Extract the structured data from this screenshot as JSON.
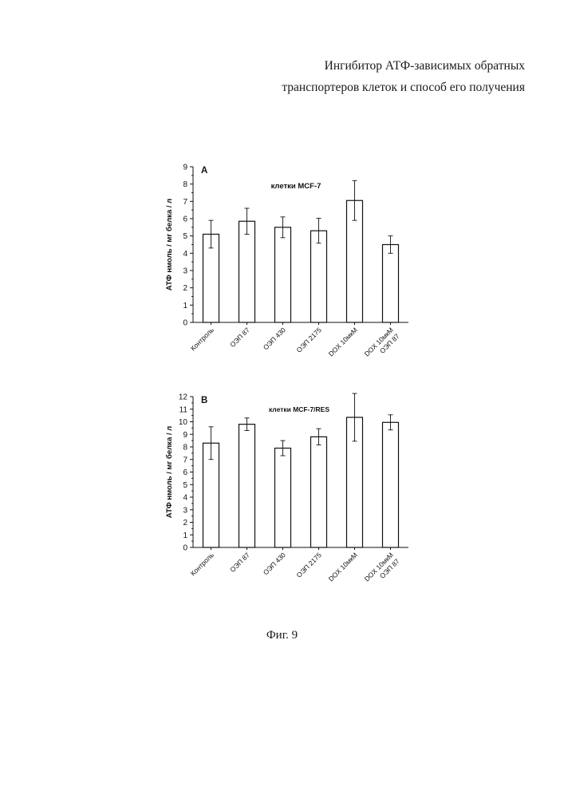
{
  "header": {
    "title_line1": "Ингибитор АТФ-зависимых обратных",
    "title_line2": "транспортеров клеток и способ его получения"
  },
  "caption": "Фиг. 9",
  "chart_data": [
    {
      "type": "bar",
      "panel_label": "A",
      "title": "клетки MCF-7",
      "ylabel": "АТФ нмоль / мг белка / л",
      "xlabel": "",
      "ylim": [
        0,
        9
      ],
      "yticks": [
        0,
        1,
        2,
        3,
        4,
        5,
        6,
        7,
        8,
        9
      ],
      "categories": [
        "Контроль",
        "ОЭП 87",
        "ОЭП 430",
        "ОЭП 2175",
        "DOX 10мкМ",
        "DOX 10мкМ\nОЭП 87"
      ],
      "values": [
        5.1,
        5.85,
        5.5,
        5.3,
        7.05,
        4.5
      ],
      "error": [
        0.8,
        0.75,
        0.6,
        0.72,
        1.15,
        0.5
      ],
      "colors": {
        "bar_fill": "#ffffff",
        "bar_stroke": "#111111"
      },
      "grid": false
    },
    {
      "type": "bar",
      "panel_label": "B",
      "title": "клетки MCF-7/RES",
      "ylabel": "АТФ нмоль / мг белка / л",
      "xlabel": "",
      "ylim": [
        0,
        12
      ],
      "yticks": [
        0,
        1,
        2,
        3,
        4,
        5,
        6,
        7,
        8,
        9,
        10,
        11,
        12
      ],
      "categories": [
        "Контроль",
        "ОЭП 87",
        "ОЭП 430",
        "ОЭП 2175",
        "DOX 10мкМ",
        "DOX 10мкМ\nОЭП 87"
      ],
      "values": [
        8.3,
        9.8,
        7.9,
        8.8,
        10.35,
        9.95
      ],
      "error": [
        1.3,
        0.5,
        0.6,
        0.65,
        1.9,
        0.6
      ],
      "colors": {
        "bar_fill": "#ffffff",
        "bar_stroke": "#111111"
      },
      "grid": false
    }
  ]
}
